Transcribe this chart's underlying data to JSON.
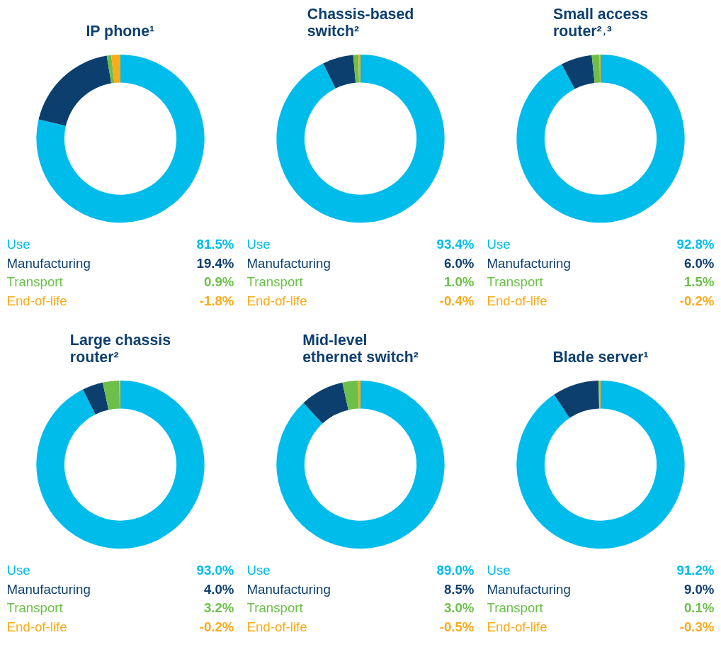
{
  "chart_data": [
    {
      "type": "other",
      "title": "IP phone¹",
      "categories": [
        "Use",
        "Manufacturing",
        "Transport",
        "End-of-life"
      ],
      "values": [
        81.5,
        19.4,
        0.9,
        -1.8
      ],
      "colors": [
        "#00bceb",
        "#0d3f6e",
        "#6cc04a",
        "#fbab18"
      ],
      "value_labels": [
        "81.5%",
        "19.4%",
        "0.9%",
        "-1.8%"
      ]
    },
    {
      "type": "other",
      "title": "Chassis-based\nswitch²",
      "categories": [
        "Use",
        "Manufacturing",
        "Transport",
        "End-of-life"
      ],
      "values": [
        93.4,
        6.0,
        1.0,
        -0.4
      ],
      "colors": [
        "#00bceb",
        "#0d3f6e",
        "#6cc04a",
        "#fbab18"
      ],
      "value_labels": [
        "93.4%",
        "6.0%",
        "1.0%",
        "-0.4%"
      ]
    },
    {
      "type": "other",
      "title": "Small access\nrouter²˒³",
      "categories": [
        "Use",
        "Manufacturing",
        "Transport",
        "End-of-life"
      ],
      "values": [
        92.8,
        6.0,
        1.5,
        -0.2
      ],
      "colors": [
        "#00bceb",
        "#0d3f6e",
        "#6cc04a",
        "#fbab18"
      ],
      "value_labels": [
        "92.8%",
        "6.0%",
        "1.5%",
        "-0.2%"
      ]
    },
    {
      "type": "other",
      "title": "Large chassis\nrouter²",
      "categories": [
        "Use",
        "Manufacturing",
        "Transport",
        "End-of-life"
      ],
      "values": [
        93.0,
        4.0,
        3.2,
        -0.2
      ],
      "colors": [
        "#00bceb",
        "#0d3f6e",
        "#6cc04a",
        "#fbab18"
      ],
      "value_labels": [
        "93.0%",
        "4.0%",
        "3.2%",
        "-0.2%"
      ]
    },
    {
      "type": "other",
      "title": "Mid-level\nethernet switch²",
      "categories": [
        "Use",
        "Manufacturing",
        "Transport",
        "End-of-life"
      ],
      "values": [
        89.0,
        8.5,
        3.0,
        -0.5
      ],
      "colors": [
        "#00bceb",
        "#0d3f6e",
        "#6cc04a",
        "#fbab18"
      ],
      "value_labels": [
        "89.0%",
        "8.5%",
        "3.0%",
        "-0.5%"
      ]
    },
    {
      "type": "other",
      "title": "Blade server¹",
      "categories": [
        "Use",
        "Manufacturing",
        "Transport",
        "End-of-life"
      ],
      "values": [
        91.2,
        9.0,
        0.1,
        -0.3
      ],
      "colors": [
        "#00bceb",
        "#0d3f6e",
        "#6cc04a",
        "#fbab18"
      ],
      "value_labels": [
        "91.2%",
        "9.0%",
        "0.1%",
        "-0.3%"
      ]
    }
  ]
}
